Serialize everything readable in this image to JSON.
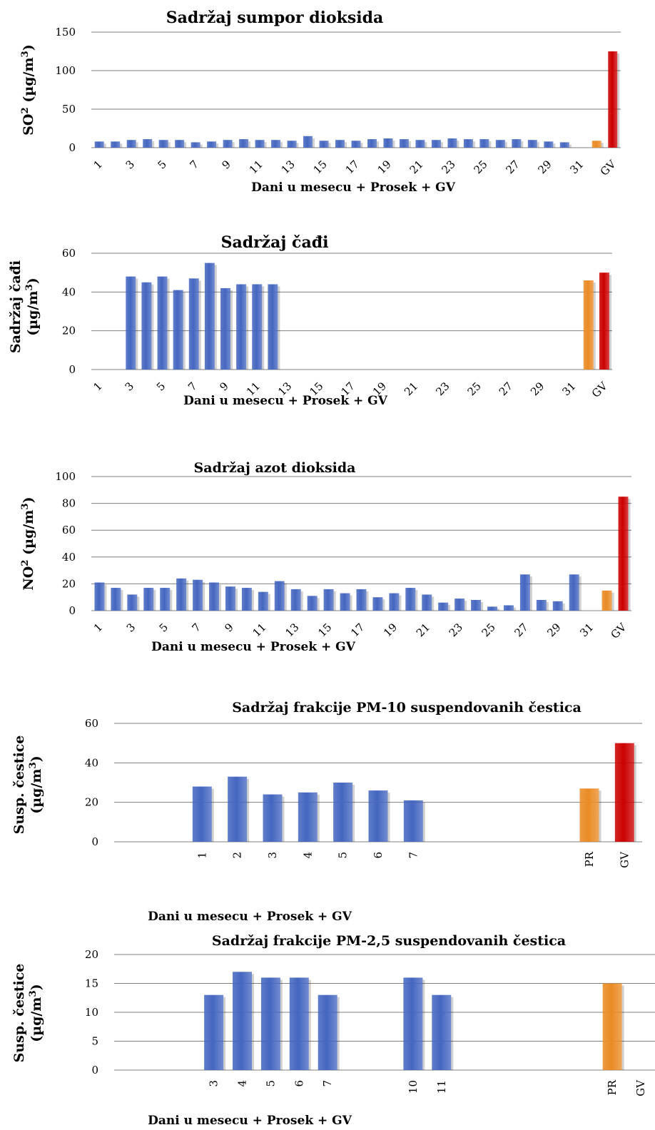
{
  "colors": {
    "daily": "#4466c0",
    "average": "#ea8a24",
    "limit": "#cc0000"
  },
  "chart_data": [
    {
      "type": "bar",
      "title": "Sadržaj sumpor dioksida",
      "ylabel_parts": [
        "SO",
        "2",
        " (µg/m",
        "3",
        ")"
      ],
      "xlabel": "Dani u mesecu + Prosek + GV",
      "ylim": [
        0,
        150
      ],
      "yticks": [
        0,
        50,
        100,
        150
      ],
      "tick_labels": [
        "1",
        "",
        "3",
        "",
        "5",
        "",
        "7",
        "",
        "9",
        "",
        "11",
        "",
        "13",
        "",
        "15",
        "",
        "17",
        "",
        "19",
        "",
        "21",
        "",
        "23",
        "",
        "25",
        "",
        "27",
        "",
        "29",
        "",
        "31",
        "",
        "GV"
      ],
      "values": [
        8,
        8,
        10,
        11,
        10,
        10,
        7,
        8,
        10,
        11,
        10,
        10,
        9,
        15,
        9,
        10,
        9,
        11,
        12,
        11,
        10,
        10,
        12,
        11,
        11,
        10,
        11,
        10,
        8,
        7,
        null,
        9,
        125
      ],
      "colors": [
        "daily",
        "daily",
        "daily",
        "daily",
        "daily",
        "daily",
        "daily",
        "daily",
        "daily",
        "daily",
        "daily",
        "daily",
        "daily",
        "daily",
        "daily",
        "daily",
        "daily",
        "daily",
        "daily",
        "daily",
        "daily",
        "daily",
        "daily",
        "daily",
        "daily",
        "daily",
        "daily",
        "daily",
        "daily",
        "daily",
        "daily",
        "average",
        "limit"
      ],
      "grid": true
    },
    {
      "type": "bar",
      "title": "Sadržaj čađi",
      "ylabel_lines": [
        [
          "Sadržaj čađi"
        ],
        [
          "(µg/m",
          "3",
          ")"
        ]
      ],
      "xlabel": "Dani u mesecu + Prosek + GV",
      "ylim": [
        0,
        60
      ],
      "yticks": [
        0,
        20,
        40,
        60
      ],
      "tick_labels": [
        "1",
        "",
        "3",
        "",
        "5",
        "",
        "7",
        "",
        "9",
        "",
        "11",
        "",
        "13",
        "",
        "15",
        "",
        "17",
        "",
        "19",
        "",
        "21",
        "",
        "23",
        "",
        "25",
        "",
        "27",
        "",
        "29",
        "",
        "31",
        "",
        "GV"
      ],
      "values": [
        null,
        null,
        48,
        45,
        48,
        41,
        47,
        55,
        42,
        44,
        44,
        44,
        null,
        null,
        null,
        null,
        null,
        null,
        null,
        null,
        null,
        null,
        null,
        null,
        null,
        null,
        null,
        null,
        null,
        null,
        null,
        46,
        50
      ],
      "colors": [
        "daily",
        "daily",
        "daily",
        "daily",
        "daily",
        "daily",
        "daily",
        "daily",
        "daily",
        "daily",
        "daily",
        "daily",
        "daily",
        "daily",
        "daily",
        "daily",
        "daily",
        "daily",
        "daily",
        "daily",
        "daily",
        "daily",
        "daily",
        "daily",
        "daily",
        "daily",
        "daily",
        "daily",
        "daily",
        "daily",
        "daily",
        "average",
        "limit"
      ],
      "grid": true
    },
    {
      "type": "bar",
      "title": "Sadržaj azot dioksida",
      "ylabel_parts": [
        "NO",
        "2",
        " (µg/m",
        "3",
        ")"
      ],
      "xlabel": "Dani u mesecu + Prosek + GV",
      "ylim": [
        0,
        100
      ],
      "yticks": [
        0,
        20,
        40,
        60,
        80,
        100
      ],
      "tick_labels": [
        "1",
        "",
        "3",
        "",
        "5",
        "",
        "7",
        "",
        "9",
        "",
        "11",
        "",
        "13",
        "",
        "15",
        "",
        "17",
        "",
        "19",
        "",
        "21",
        "",
        "23",
        "",
        "25",
        "",
        "27",
        "",
        "29",
        "",
        "31",
        "",
        "GV"
      ],
      "values": [
        21,
        17,
        12,
        17,
        17,
        24,
        23,
        21,
        18,
        17,
        14,
        22,
        16,
        11,
        16,
        13,
        16,
        10,
        13,
        17,
        12,
        6,
        9,
        8,
        3,
        4,
        27,
        8,
        7,
        27,
        null,
        15,
        85
      ],
      "colors": [
        "daily",
        "daily",
        "daily",
        "daily",
        "daily",
        "daily",
        "daily",
        "daily",
        "daily",
        "daily",
        "daily",
        "daily",
        "daily",
        "daily",
        "daily",
        "daily",
        "daily",
        "daily",
        "daily",
        "daily",
        "daily",
        "daily",
        "daily",
        "daily",
        "daily",
        "daily",
        "daily",
        "daily",
        "daily",
        "daily",
        "daily",
        "average",
        "limit"
      ],
      "grid": true
    },
    {
      "type": "bar",
      "title": "Sadržaj frakcije PM-10 suspendovanih čestica",
      "ylabel_lines": [
        [
          "Susp. čestice"
        ],
        [
          "(µg/m",
          "3",
          ")"
        ]
      ],
      "xlabel": "Dani u mesecu + Prosek + GV",
      "ylim": [
        0,
        60
      ],
      "yticks": [
        0,
        20,
        40,
        60
      ],
      "tick_labels": [
        "",
        "",
        "1",
        "2",
        "3",
        "4",
        "5",
        "6",
        "7",
        "",
        "",
        "",
        "",
        "PR",
        "GV"
      ],
      "values": [
        null,
        null,
        28,
        33,
        24,
        25,
        30,
        26,
        21,
        null,
        null,
        null,
        null,
        27,
        50
      ],
      "colors": [
        "daily",
        "daily",
        "daily",
        "daily",
        "daily",
        "daily",
        "daily",
        "daily",
        "daily",
        "daily",
        "daily",
        "daily",
        "daily",
        "average",
        "limit"
      ],
      "grid": true
    },
    {
      "type": "bar",
      "title": "Sadržaj frakcije PM-2,5 suspendovanih čestica",
      "ylabel_lines": [
        [
          "Susp. čestice"
        ],
        [
          "(µg/m",
          "3",
          ")"
        ]
      ],
      "xlabel": "Dani u mesecu + Prosek + GV",
      "ylim": [
        0,
        20
      ],
      "yticks": [
        0,
        5,
        10,
        15,
        20
      ],
      "tick_labels": [
        "",
        "",
        "",
        "3",
        "4",
        "5",
        "6",
        "7",
        "",
        "",
        "10",
        "11",
        "",
        "",
        "",
        "",
        "",
        "PR",
        "GV"
      ],
      "values": [
        null,
        null,
        null,
        13,
        17,
        16,
        16,
        13,
        null,
        null,
        16,
        13,
        null,
        null,
        null,
        null,
        null,
        15,
        null
      ],
      "colors": [
        "daily",
        "daily",
        "daily",
        "daily",
        "daily",
        "daily",
        "daily",
        "daily",
        "daily",
        "daily",
        "daily",
        "daily",
        "daily",
        "daily",
        "daily",
        "daily",
        "daily",
        "average",
        "limit"
      ],
      "grid": true
    }
  ]
}
